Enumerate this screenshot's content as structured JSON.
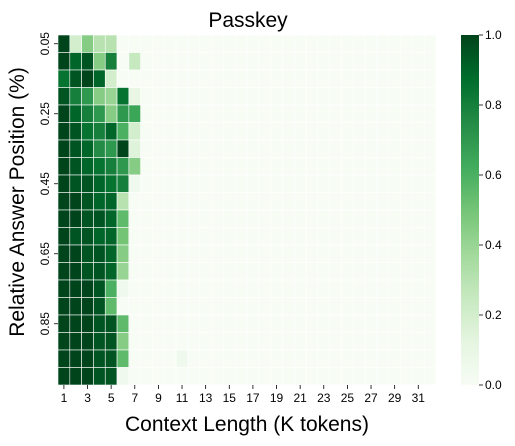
{
  "chart_data": {
    "type": "heatmap",
    "title": "Passkey",
    "xlabel": "Context Length (K tokens)",
    "ylabel": "Relative Answer Position (%)",
    "colormap": "Greens",
    "colorbar": {
      "min": 0.0,
      "max": 1.0,
      "ticks": [
        "0.0",
        "0.2",
        "0.4",
        "0.6",
        "0.8",
        "1.0"
      ]
    },
    "x_ticklabels": [
      "1",
      "3",
      "5",
      "7",
      "9",
      "11",
      "13",
      "15",
      "17",
      "19",
      "21",
      "23",
      "25",
      "27",
      "29",
      "31"
    ],
    "y_ticklabels": [
      "0.05",
      "0.25",
      "0.45",
      "0.65",
      "0.85"
    ],
    "x_count": 32,
    "y_count": 20,
    "matrix": [
      [
        1.0,
        0.2,
        0.45,
        0.3,
        0.3,
        0,
        0,
        0,
        0,
        0,
        0,
        0,
        0,
        0,
        0,
        0,
        0,
        0,
        0,
        0,
        0,
        0,
        0,
        0,
        0,
        0,
        0,
        0,
        0,
        0,
        0,
        0
      ],
      [
        1.0,
        0.9,
        0.95,
        0.45,
        0.8,
        0,
        0.25,
        0,
        0,
        0,
        0,
        0,
        0,
        0,
        0,
        0,
        0,
        0,
        0,
        0,
        0,
        0,
        0,
        0,
        0,
        0,
        0,
        0,
        0,
        0,
        0,
        0
      ],
      [
        0.85,
        0.95,
        1.0,
        0.9,
        0.2,
        0,
        0,
        0,
        0,
        0,
        0,
        0,
        0,
        0,
        0,
        0,
        0,
        0,
        0,
        0,
        0,
        0,
        0,
        0,
        0,
        0,
        0,
        0,
        0,
        0,
        0,
        0
      ],
      [
        0.95,
        0.8,
        0.7,
        0.45,
        0.4,
        0.85,
        0.1,
        0,
        0,
        0,
        0,
        0,
        0,
        0,
        0,
        0,
        0,
        0,
        0,
        0,
        0,
        0,
        0,
        0,
        0,
        0,
        0,
        0,
        0,
        0,
        0,
        0
      ],
      [
        1.0,
        0.9,
        0.8,
        0.7,
        0.45,
        0.7,
        0.65,
        0,
        0,
        0,
        0,
        0,
        0,
        0,
        0,
        0,
        0,
        0,
        0,
        0,
        0,
        0,
        0,
        0,
        0,
        0,
        0,
        0,
        0,
        0,
        0,
        0
      ],
      [
        1.0,
        0.95,
        0.85,
        0.8,
        0.9,
        0.6,
        0.2,
        0,
        0,
        0,
        0,
        0,
        0,
        0,
        0,
        0,
        0,
        0,
        0,
        0,
        0,
        0,
        0,
        0,
        0,
        0,
        0,
        0,
        0,
        0,
        0,
        0
      ],
      [
        1.0,
        0.95,
        0.9,
        0.75,
        0.7,
        1.0,
        0.15,
        0,
        0,
        0,
        0,
        0,
        0,
        0,
        0,
        0,
        0,
        0,
        0,
        0,
        0,
        0,
        0,
        0,
        0,
        0,
        0,
        0,
        0,
        0,
        0,
        0
      ],
      [
        1.0,
        0.95,
        0.9,
        0.85,
        0.8,
        0.7,
        0.45,
        0,
        0,
        0,
        0,
        0,
        0,
        0,
        0,
        0,
        0,
        0,
        0,
        0,
        0,
        0,
        0,
        0,
        0,
        0,
        0,
        0,
        0,
        0,
        0,
        0
      ],
      [
        1.0,
        0.95,
        0.95,
        0.9,
        0.85,
        0.8,
        0.05,
        0,
        0,
        0,
        0,
        0,
        0,
        0,
        0,
        0,
        0,
        0,
        0,
        0,
        0,
        0,
        0,
        0,
        0,
        0,
        0,
        0,
        0,
        0,
        0,
        0
      ],
      [
        1.0,
        1.0,
        0.95,
        0.9,
        0.9,
        0.3,
        0,
        0,
        0,
        0,
        0,
        0,
        0,
        0,
        0,
        0,
        0,
        0,
        0,
        0,
        0,
        0,
        0,
        0,
        0,
        0,
        0,
        0,
        0,
        0,
        0,
        0
      ],
      [
        1.0,
        1.0,
        0.95,
        0.95,
        0.9,
        0.55,
        0,
        0,
        0,
        0,
        0,
        0,
        0,
        0,
        0,
        0,
        0,
        0,
        0,
        0,
        0,
        0,
        0,
        0,
        0,
        0,
        0,
        0,
        0,
        0,
        0,
        0
      ],
      [
        1.0,
        0.95,
        0.95,
        0.9,
        0.9,
        0.5,
        0,
        0,
        0,
        0,
        0,
        0,
        0,
        0,
        0,
        0,
        0,
        0,
        0,
        0,
        0,
        0,
        0,
        0,
        0,
        0,
        0,
        0,
        0,
        0,
        0,
        0
      ],
      [
        1.0,
        1.0,
        0.95,
        0.95,
        0.9,
        0.45,
        0,
        0,
        0,
        0,
        0,
        0,
        0,
        0,
        0,
        0,
        0,
        0,
        0,
        0,
        0,
        0,
        0,
        0,
        0,
        0,
        0,
        0,
        0,
        0,
        0,
        0
      ],
      [
        1.0,
        1.0,
        0.95,
        0.95,
        0.9,
        0.4,
        0,
        0,
        0,
        0,
        0,
        0,
        0,
        0,
        0,
        0,
        0,
        0,
        0,
        0,
        0,
        0,
        0,
        0,
        0,
        0,
        0,
        0,
        0,
        0,
        0,
        0
      ],
      [
        1.0,
        1.0,
        1.0,
        0.95,
        0.6,
        0.05,
        0,
        0,
        0,
        0,
        0,
        0,
        0,
        0,
        0,
        0,
        0,
        0,
        0,
        0,
        0,
        0,
        0,
        0,
        0,
        0,
        0,
        0,
        0,
        0,
        0,
        0
      ],
      [
        1.0,
        1.0,
        1.0,
        0.95,
        0.55,
        0,
        0,
        0,
        0,
        0,
        0,
        0,
        0,
        0,
        0,
        0,
        0,
        0,
        0,
        0,
        0,
        0,
        0,
        0,
        0,
        0,
        0,
        0,
        0,
        0,
        0,
        0
      ],
      [
        1.0,
        1.0,
        1.0,
        0.95,
        0.95,
        0.55,
        0,
        0,
        0,
        0,
        0,
        0,
        0,
        0,
        0,
        0,
        0,
        0,
        0,
        0,
        0,
        0,
        0,
        0,
        0,
        0,
        0,
        0,
        0,
        0,
        0,
        0
      ],
      [
        1.0,
        1.0,
        1.0,
        0.95,
        0.95,
        0.45,
        0,
        0,
        0,
        0,
        0,
        0,
        0,
        0,
        0,
        0,
        0,
        0,
        0,
        0,
        0,
        0,
        0,
        0,
        0,
        0,
        0,
        0,
        0,
        0,
        0,
        0
      ],
      [
        1.0,
        1.0,
        1.0,
        0.95,
        0.95,
        0.55,
        0,
        0,
        0,
        0,
        0.05,
        0,
        0,
        0,
        0,
        0,
        0,
        0,
        0,
        0,
        0,
        0,
        0,
        0,
        0,
        0,
        0,
        0,
        0,
        0,
        0,
        0
      ],
      [
        1.0,
        1.0,
        1.0,
        0.95,
        0.95,
        0.05,
        0,
        0,
        0,
        0,
        0,
        0,
        0,
        0,
        0,
        0,
        0,
        0,
        0,
        0,
        0,
        0,
        0,
        0,
        0,
        0,
        0,
        0,
        0,
        0,
        0,
        0
      ]
    ]
  }
}
